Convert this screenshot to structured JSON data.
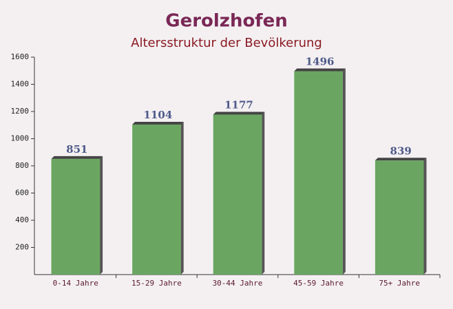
{
  "chart_data": {
    "type": "bar",
    "title": "Gerolzhofen",
    "subtitle": "Altersstruktur der Bevölkerung",
    "categories": [
      "0-14 Jahre",
      "15-29 Jahre",
      "30-44 Jahre",
      "45-59 Jahre",
      "75+ Jahre"
    ],
    "values": [
      851,
      1104,
      1177,
      1496,
      839
    ],
    "color": "#6aa661",
    "ylim": [
      0,
      1600
    ],
    "yticks": [
      200,
      400,
      600,
      800,
      1000,
      1200,
      1400,
      1600
    ],
    "grid": false
  }
}
